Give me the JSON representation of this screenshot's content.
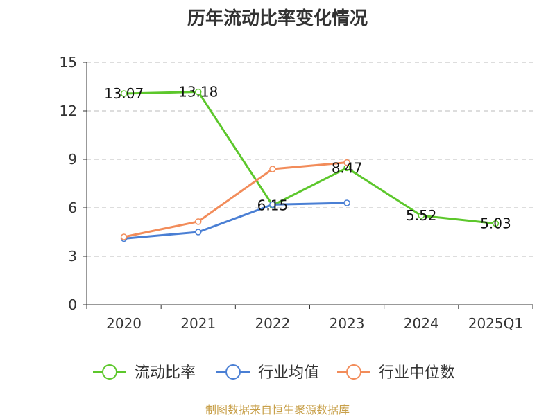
{
  "chart_data": {
    "type": "line",
    "title": "历年流动比率变化情况",
    "categories": [
      "2020",
      "2021",
      "2022",
      "2023",
      "2024",
      "2025Q1"
    ],
    "ylim": [
      0,
      15
    ],
    "yticks": [
      0,
      3,
      6,
      9,
      12,
      15
    ],
    "grid": true,
    "legend_position": "bottom",
    "series": [
      {
        "name": "流动比率",
        "color": "#5cc72b",
        "values": [
          13.07,
          13.18,
          6.15,
          8.47,
          5.52,
          5.03
        ],
        "labels": [
          "13.07",
          "13.18",
          "6.15",
          "8.47",
          "5.52",
          "5.03"
        ]
      },
      {
        "name": "行业均值",
        "color": "#4a7fd4",
        "values": [
          4.1,
          4.5,
          6.2,
          6.3,
          null,
          null
        ]
      },
      {
        "name": "行业中位数",
        "color": "#f28c5a",
        "values": [
          4.2,
          5.15,
          8.4,
          8.8,
          null,
          null
        ]
      }
    ]
  },
  "source": "制图数据来自恒生聚源数据库"
}
